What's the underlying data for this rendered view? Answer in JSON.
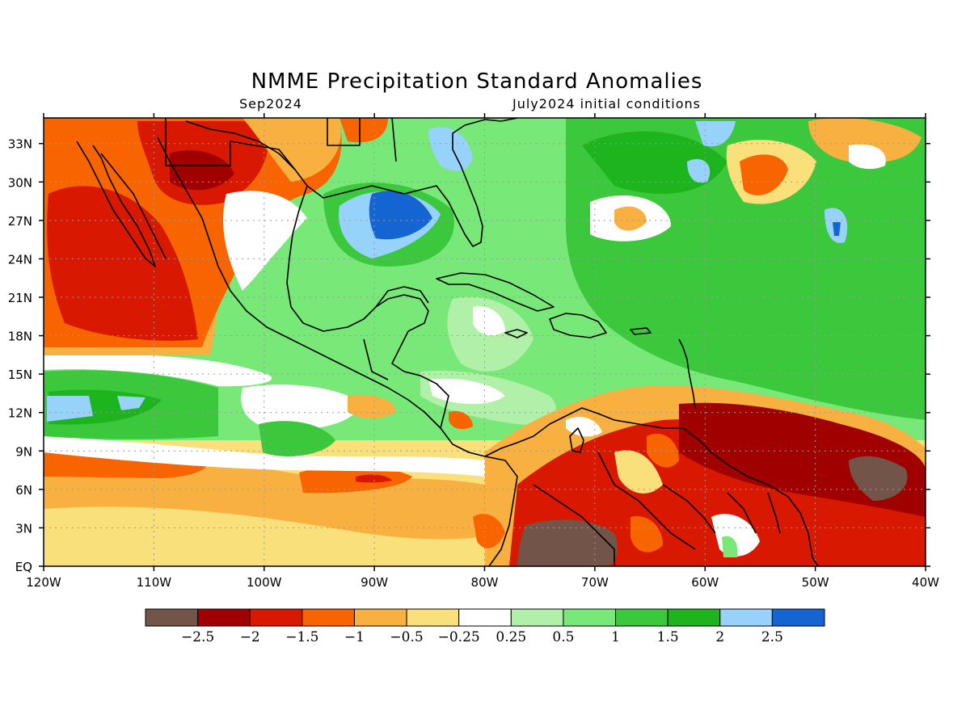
{
  "title": "NMME Precipitation Standard Anomalies",
  "subtitle_left": "Sep2024",
  "subtitle_right": "July2024 initial conditions",
  "map": {
    "lon_range": [
      -120,
      -40
    ],
    "lat_range": [
      0,
      35
    ],
    "lat_ticks": [
      {
        "value": 33,
        "label": "33N"
      },
      {
        "value": 30,
        "label": "30N"
      },
      {
        "value": 27,
        "label": "27N"
      },
      {
        "value": 24,
        "label": "24N"
      },
      {
        "value": 21,
        "label": "21N"
      },
      {
        "value": 18,
        "label": "18N"
      },
      {
        "value": 15,
        "label": "15N"
      },
      {
        "value": 12,
        "label": "12N"
      },
      {
        "value": 9,
        "label": "9N"
      },
      {
        "value": 6,
        "label": "6N"
      },
      {
        "value": 3,
        "label": "3N"
      },
      {
        "value": 0,
        "label": "EQ"
      }
    ],
    "lon_ticks": [
      {
        "value": -120,
        "label": "120W"
      },
      {
        "value": -110,
        "label": "110W"
      },
      {
        "value": -100,
        "label": "100W"
      },
      {
        "value": -90,
        "label": "90W"
      },
      {
        "value": -80,
        "label": "80W"
      },
      {
        "value": -70,
        "label": "70W"
      },
      {
        "value": -60,
        "label": "60W"
      },
      {
        "value": -50,
        "label": "50W"
      },
      {
        "value": -40,
        "label": "40W"
      }
    ],
    "grid": true
  },
  "legend": {
    "colors": [
      "#725449",
      "#a00000",
      "#d81800",
      "#f86400",
      "#f8b040",
      "#fae07a",
      "#ffffff",
      "#b0f0a8",
      "#78e878",
      "#3cc83c",
      "#1eb41e",
      "#96d2fa",
      "#1464d2"
    ],
    "labels": [
      "−2.5",
      "−2",
      "−1.5",
      "−1",
      "−0.5",
      "−0.25",
      "0.25",
      "0.5",
      "1",
      "1.5",
      "2",
      "2.5"
    ]
  }
}
